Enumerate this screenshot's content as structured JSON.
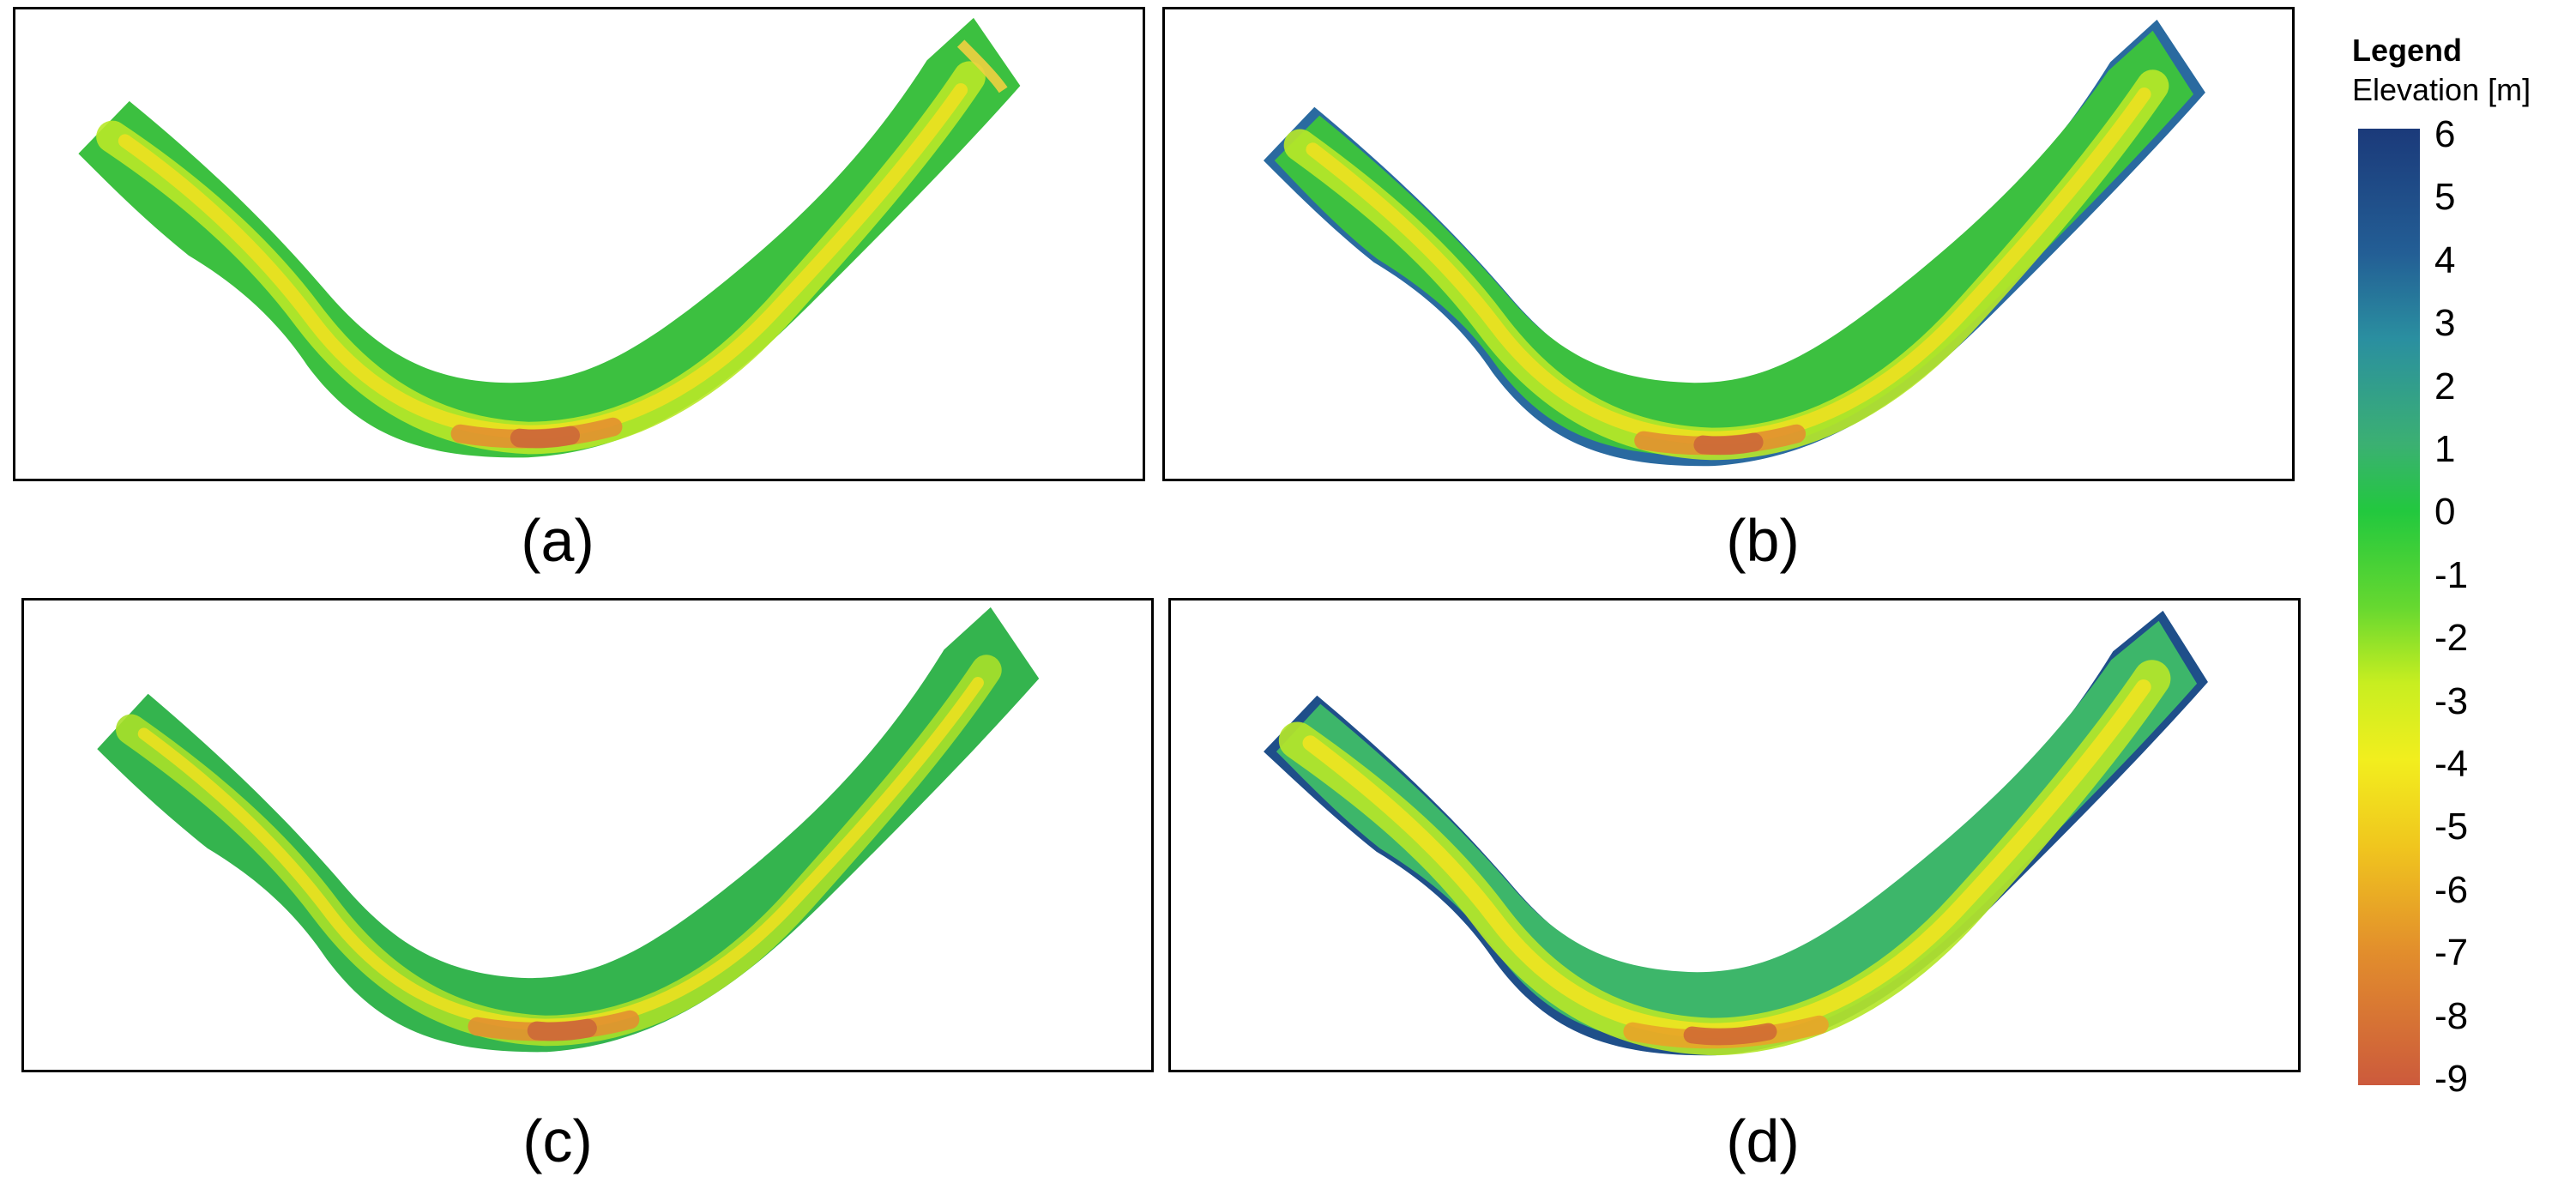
{
  "panels": [
    {
      "id": "a",
      "caption": "(a)",
      "style": "faceted"
    },
    {
      "id": "b",
      "caption": "(b)",
      "style": "faceted-blue-edges"
    },
    {
      "id": "c",
      "caption": "(c)",
      "style": "faceted"
    },
    {
      "id": "d",
      "caption": "(d)",
      "style": "smooth"
    }
  ],
  "legend": {
    "title": "Legend",
    "subtitle": "Elevation [m]",
    "ticks": [
      "6",
      "5",
      "4",
      "3",
      "2",
      "1",
      "0",
      "-1",
      "-2",
      "-3",
      "-4",
      "-5",
      "-6",
      "-7",
      "-8",
      "-9"
    ],
    "range": [
      -9,
      6
    ],
    "colors": {
      "top": "#1b3a7a",
      "upper": "#2a8fa0",
      "mid_upper": "#3cbf55",
      "zero": "#20c840",
      "mid_lower": "#c8ee20",
      "lower": "#f0d818",
      "low": "#e89a28",
      "bottom": "#cc5a3c"
    }
  }
}
